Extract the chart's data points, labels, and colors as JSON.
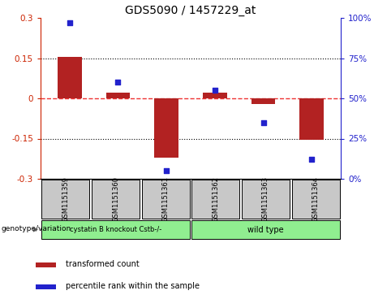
{
  "title": "GDS5090 / 1457229_at",
  "samples": [
    "GSM1151359",
    "GSM1151360",
    "GSM1151361",
    "GSM1151362",
    "GSM1151363",
    "GSM1151364"
  ],
  "bar_values": [
    0.155,
    0.02,
    -0.22,
    0.02,
    -0.02,
    -0.155
  ],
  "scatter_values": [
    97,
    60,
    5,
    55,
    35,
    12
  ],
  "ylim_left": [
    -0.3,
    0.3
  ],
  "ylim_right": [
    0,
    100
  ],
  "yticks_left": [
    -0.3,
    -0.15,
    0,
    0.15,
    0.3
  ],
  "yticks_right": [
    0,
    25,
    50,
    75,
    100
  ],
  "bar_color": "#B22222",
  "scatter_color": "#2222CC",
  "zero_line_color": "#EE3333",
  "grid_color": "#000000",
  "bg_color": "#FFFFFF",
  "group1_label": "cystatin B knockout Cstb-/-",
  "group2_label": "wild type",
  "group1_color": "#90EE90",
  "group2_color": "#90EE90",
  "group1_samples": [
    0,
    1,
    2
  ],
  "group2_samples": [
    3,
    4,
    5
  ],
  "genotype_label": "genotype/variation",
  "legend_red": "transformed count",
  "legend_blue": "percentile rank within the sample",
  "bar_width": 0.5,
  "tick_label_color_left": "#CC2200",
  "tick_label_color_right": "#2222CC",
  "box_color": "#C8C8C8"
}
